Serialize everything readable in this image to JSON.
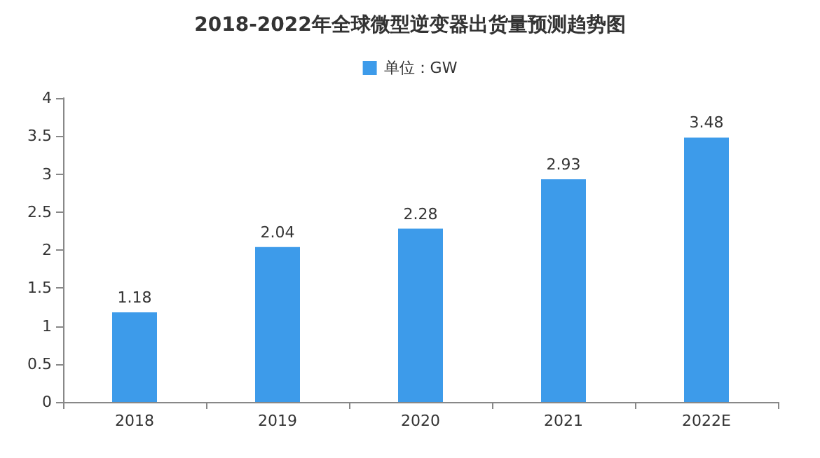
{
  "chart_data": {
    "type": "bar",
    "title": "2018-2022年全球微型逆变器出货量预测趋势图",
    "categories": [
      "2018",
      "2019",
      "2020",
      "2021",
      "2022E"
    ],
    "series": [
      {
        "name": "单位：GW",
        "color": "#3d9bea",
        "values": [
          1.18,
          2.04,
          2.28,
          2.93,
          3.48
        ]
      }
    ],
    "ylim": [
      0,
      4
    ],
    "yticks": [
      0,
      0.5,
      1,
      1.5,
      2,
      2.5,
      3,
      3.5,
      4
    ],
    "data_labels": true,
    "legend": "top",
    "grid": false
  }
}
